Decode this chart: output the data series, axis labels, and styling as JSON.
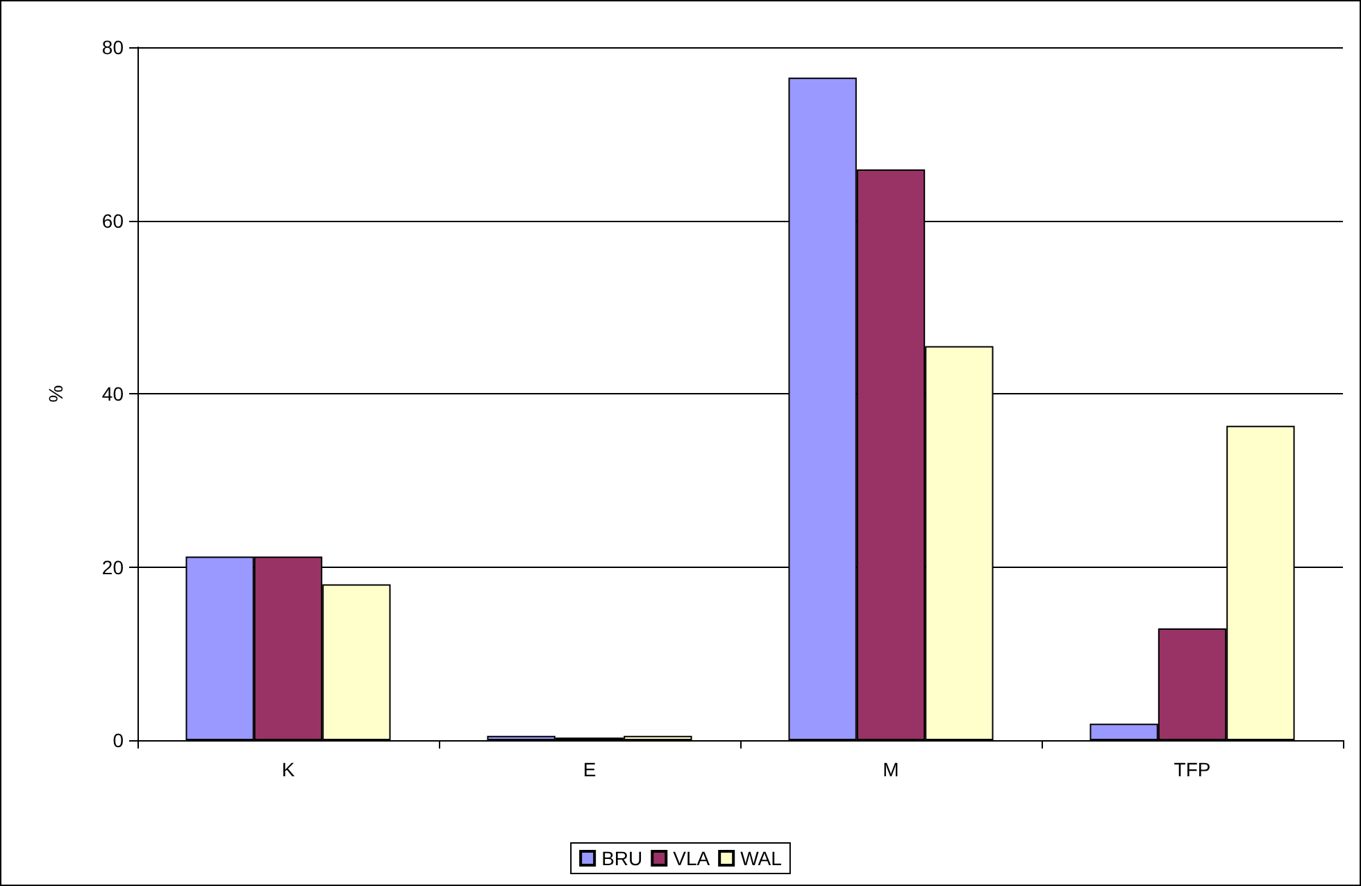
{
  "chart_data": {
    "type": "bar",
    "ylabel": "%",
    "categories": [
      "K",
      "E",
      "M",
      "TFP"
    ],
    "series": [
      {
        "name": "BRU",
        "color": "#9999ff",
        "values": [
          21.2,
          0.5,
          76.5,
          1.9
        ]
      },
      {
        "name": "VLA",
        "color": "#993366",
        "values": [
          21.2,
          0.3,
          65.9,
          12.9
        ]
      },
      {
        "name": "WAL",
        "color": "#ffffcc",
        "values": [
          18.0,
          0.5,
          45.5,
          36.3
        ]
      }
    ],
    "ylim": [
      0,
      80
    ],
    "yticks": [
      0,
      20,
      40,
      60,
      80
    ],
    "grid": "y",
    "legend": "bottom"
  }
}
